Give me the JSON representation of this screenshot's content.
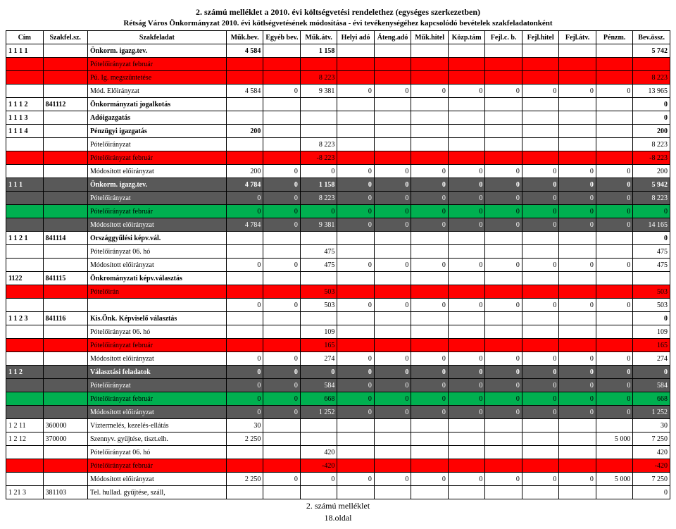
{
  "titles": {
    "t1": "2. számú melléklet a 2010. évi költségvetési rendelethez (egységes szerkezetben)",
    "t2": "Rétság Város Önkormányzat 2010. évi kötlségvetésének módosítása - évi tevékenységéhez kapcsolódó bevételek szakfeladatonként"
  },
  "headers": [
    "Cím",
    "Szakfel.sz.",
    "Szakfeladat",
    "Műk.bev.",
    "Egyéb bev.",
    "Műk.átv.",
    "Helyi adó",
    "Áteng.adó",
    "Műk.hitel",
    "Közp.tám",
    "Fejl.c. b.",
    "Fejl.hitel",
    "Fejl.átv.",
    "Pénzm.",
    "Bev.össz."
  ],
  "colors": {
    "red": "#ff0000",
    "green": "#00b050",
    "dark": "#595959",
    "white": "#ffffff"
  },
  "rows": [
    {
      "bg": "white",
      "bold": true,
      "c": [
        "1 1 1 1",
        "",
        "Önkorm. igazg.tev.",
        "4 584",
        "",
        "1 158",
        "",
        "",
        "",
        "",
        "",
        "",
        "",
        "",
        "5 742"
      ]
    },
    {
      "bg": "red",
      "c": [
        "",
        "",
        "Pótelőirányzat február",
        "",
        "",
        "",
        "",
        "",
        "",
        "",
        "",
        "",
        "",
        "",
        ""
      ]
    },
    {
      "bg": "red",
      "c": [
        "",
        "",
        "Pü. Ig. megszüntetése",
        "",
        "",
        "8 223",
        "",
        "",
        "",
        "",
        "",
        "",
        "",
        "",
        "8 223"
      ]
    },
    {
      "bg": "white",
      "c": [
        "",
        "",
        "Mód. Előirányzat",
        "4 584",
        "0",
        "9 381",
        "0",
        "0",
        "0",
        "0",
        "0",
        "0",
        "0",
        "0",
        "13 965"
      ]
    },
    {
      "bg": "white",
      "bold": true,
      "c": [
        "1 1 1 2",
        "841112",
        "Önkormányzati jogalkotás",
        "",
        "",
        "",
        "",
        "",
        "",
        "",
        "",
        "",
        "",
        "",
        "0"
      ]
    },
    {
      "bg": "white",
      "bold": true,
      "c": [
        "1 1 1 3",
        "",
        "Adóigazgatás",
        "",
        "",
        "",
        "",
        "",
        "",
        "",
        "",
        "",
        "",
        "",
        "0"
      ]
    },
    {
      "bg": "white",
      "bold": true,
      "c": [
        "1 1 1 4",
        "",
        "Pénzügyi igazgatás",
        "200",
        "",
        "",
        "",
        "",
        "",
        "",
        "",
        "",
        "",
        "",
        "200"
      ]
    },
    {
      "bg": "white",
      "c": [
        "",
        "",
        "Pótelőirányzat",
        "",
        "",
        "8 223",
        "",
        "",
        "",
        "",
        "",
        "",
        "",
        "",
        "8 223"
      ]
    },
    {
      "bg": "red",
      "c": [
        "",
        "",
        "Pótelőirányzat február",
        "",
        "",
        "-8 223",
        "",
        "",
        "",
        "",
        "",
        "",
        "",
        "",
        "-8 223"
      ]
    },
    {
      "bg": "white",
      "c": [
        "",
        "",
        "Módosított előirányzat",
        "200",
        "0",
        "0",
        "0",
        "0",
        "0",
        "0",
        "0",
        "0",
        "0",
        "0",
        "200"
      ]
    },
    {
      "bg": "dark",
      "whiteText": true,
      "bold": true,
      "c": [
        "1 1 1",
        "",
        "Önkorm. igazg.tev.",
        "4 784",
        "0",
        "1 158",
        "0",
        "0",
        "0",
        "0",
        "0",
        "0",
        "0",
        "0",
        "5 942"
      ]
    },
    {
      "bg": "dark",
      "whiteText": true,
      "c": [
        "",
        "",
        "Pótelőirányzat",
        "0",
        "0",
        "8 223",
        "0",
        "0",
        "0",
        "0",
        "0",
        "0",
        "0",
        "0",
        "8 223"
      ]
    },
    {
      "bg": "green",
      "c": [
        "",
        "",
        "Pótelőirányzat február",
        "0",
        "0",
        "0",
        "0",
        "0",
        "0",
        "0",
        "0",
        "0",
        "0",
        "0",
        "0"
      ]
    },
    {
      "bg": "dark",
      "whiteText": true,
      "c": [
        "",
        "",
        "Módosított előirányzat",
        "4 784",
        "0",
        "9 381",
        "0",
        "0",
        "0",
        "0",
        "0",
        "0",
        "0",
        "0",
        "14 165"
      ]
    },
    {
      "bg": "white",
      "bold": true,
      "c": [
        "1 1 2 1",
        "841114",
        "Országgyűlési képv.vál.",
        "",
        "",
        "",
        "",
        "",
        "",
        "",
        "",
        "",
        "",
        "",
        "0"
      ]
    },
    {
      "bg": "white",
      "c": [
        "",
        "",
        "Pótelőirányzat 06. hó",
        "",
        "",
        "475",
        "",
        "",
        "",
        "",
        "",
        "",
        "",
        "",
        "475"
      ]
    },
    {
      "bg": "white",
      "c": [
        "",
        "",
        "Módosított előirányzat",
        "0",
        "0",
        "475",
        "0",
        "0",
        "0",
        "0",
        "0",
        "0",
        "0",
        "0",
        "475"
      ]
    },
    {
      "bg": "white",
      "bold": true,
      "c": [
        "1122",
        "841115",
        "Önkrományzati képv.választás",
        "",
        "",
        "",
        "",
        "",
        "",
        "",
        "",
        "",
        "",
        "",
        ""
      ]
    },
    {
      "bg": "red",
      "c": [
        "",
        "",
        "Pótelőirán",
        "",
        "",
        "503",
        "",
        "",
        "",
        "",
        "",
        "",
        "",
        "",
        "503"
      ]
    },
    {
      "bg": "white",
      "c": [
        "",
        "",
        "",
        "0",
        "0",
        "503",
        "0",
        "0",
        "0",
        "0",
        "0",
        "0",
        "0",
        "0",
        "503"
      ]
    },
    {
      "bg": "white",
      "bold": true,
      "c": [
        "1 1 2 3",
        "841116",
        "Kis.Önk. Képviselő választás",
        "",
        "",
        "",
        "",
        "",
        "",
        "",
        "",
        "",
        "",
        "",
        "0"
      ]
    },
    {
      "bg": "white",
      "c": [
        "",
        "",
        "Pótelőirányzat 06. hó",
        "",
        "",
        "109",
        "",
        "",
        "",
        "",
        "",
        "",
        "",
        "",
        "109"
      ]
    },
    {
      "bg": "red",
      "c": [
        "",
        "",
        "Pótelőirányzat február",
        "",
        "",
        "165",
        "",
        "",
        "",
        "",
        "",
        "",
        "",
        "",
        "165"
      ]
    },
    {
      "bg": "white",
      "c": [
        "",
        "",
        "Módosított előirányzat",
        "0",
        "0",
        "274",
        "0",
        "0",
        "0",
        "0",
        "0",
        "0",
        "0",
        "0",
        "274"
      ]
    },
    {
      "bg": "dark",
      "whiteText": true,
      "bold": true,
      "c": [
        "1 1 2",
        "",
        "Választási feladatok",
        "0",
        "0",
        "0",
        "0",
        "0",
        "0",
        "0",
        "0",
        "0",
        "0",
        "0",
        "0"
      ]
    },
    {
      "bg": "dark",
      "whiteText": true,
      "c": [
        "",
        "",
        "Pótelőirányzat",
        "0",
        "0",
        "584",
        "0",
        "0",
        "0",
        "0",
        "0",
        "0",
        "0",
        "0",
        "584"
      ]
    },
    {
      "bg": "green",
      "c": [
        "",
        "",
        "Pótelőirányzat február",
        "0",
        "0",
        "668",
        "0",
        "0",
        "0",
        "0",
        "0",
        "0",
        "0",
        "0",
        "668"
      ]
    },
    {
      "bg": "dark",
      "whiteText": true,
      "c": [
        "",
        "",
        "Módosított előirányzat",
        "0",
        "0",
        "1 252",
        "0",
        "0",
        "0",
        "0",
        "0",
        "0",
        "0",
        "0",
        "1 252"
      ]
    },
    {
      "bg": "white",
      "c": [
        "1 2 11",
        "360000",
        "Víztermelés, kezelés-ellátás",
        "30",
        "",
        "",
        "",
        "",
        "",
        "",
        "",
        "",
        "",
        "",
        "30"
      ]
    },
    {
      "bg": "white",
      "c": [
        "1 2 12",
        "370000",
        "Szennyv. gyűjtése, tiszt.elh.",
        "2 250",
        "",
        "",
        "",
        "",
        "",
        "",
        "",
        "",
        "",
        "5 000",
        "7 250"
      ]
    },
    {
      "bg": "white",
      "c": [
        "",
        "",
        "Pótelőirányzat 06. hó",
        "",
        "",
        "420",
        "",
        "",
        "",
        "",
        "",
        "",
        "",
        "",
        "420"
      ]
    },
    {
      "bg": "red",
      "c": [
        "",
        "",
        "Pótelőirányzat február",
        "",
        "",
        "-420",
        "",
        "",
        "",
        "",
        "",
        "",
        "",
        "",
        "-420"
      ]
    },
    {
      "bg": "white",
      "c": [
        "",
        "",
        "Módosított előirányzat",
        "2 250",
        "0",
        "0",
        "0",
        "0",
        "0",
        "0",
        "0",
        "0",
        "0",
        "5 000",
        "7 250"
      ]
    },
    {
      "bg": "white",
      "c": [
        "1 21 3",
        "381103",
        "Tel. hullad. gyűjtése, száll,",
        "",
        "",
        "",
        "",
        "",
        "",
        "",
        "",
        "",
        "",
        "",
        "0"
      ]
    }
  ],
  "footer": {
    "line1": "2. számú melléklet",
    "line2": "18.oldal"
  }
}
